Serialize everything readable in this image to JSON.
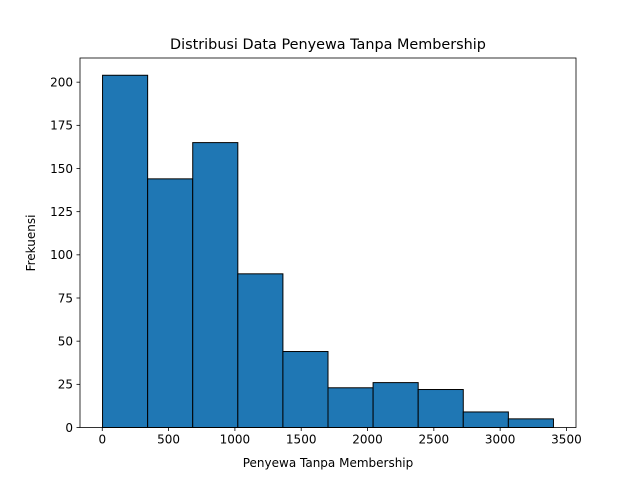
{
  "chart_data": {
    "type": "bar",
    "subtype": "histogram",
    "title": "Distribusi Data Penyewa Tanpa Membership",
    "xlabel": "Penyewa Tanpa Membership",
    "ylabel": "Frekuensi",
    "bins": [
      {
        "start": 2,
        "end": 342,
        "count": 204
      },
      {
        "start": 342,
        "end": 682,
        "count": 144
      },
      {
        "start": 682,
        "end": 1022,
        "count": 165
      },
      {
        "start": 1022,
        "end": 1362,
        "count": 89
      },
      {
        "start": 1362,
        "end": 1702,
        "count": 44
      },
      {
        "start": 1702,
        "end": 2042,
        "count": 23
      },
      {
        "start": 2042,
        "end": 2382,
        "count": 26
      },
      {
        "start": 2382,
        "end": 2722,
        "count": 22
      },
      {
        "start": 2722,
        "end": 3062,
        "count": 9
      },
      {
        "start": 3062,
        "end": 3402,
        "count": 5
      }
    ],
    "xlim": [
      -168,
      3572
    ],
    "ylim": [
      0,
      214
    ],
    "xticks": [
      0,
      500,
      1000,
      1500,
      2000,
      2500,
      3000,
      3500
    ],
    "yticks": [
      0,
      25,
      50,
      75,
      100,
      125,
      150,
      175,
      200
    ],
    "bar_color": "#1f77b4",
    "edge_color": "#000000",
    "grid": false,
    "legend": "none"
  }
}
